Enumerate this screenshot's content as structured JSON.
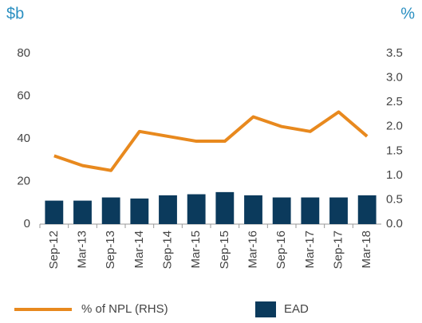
{
  "chart_data": {
    "type": "bar_line",
    "y_unit": "$b",
    "y2_unit": "%",
    "categories": [
      "Sep-12",
      "Mar-13",
      "Sep-13",
      "Mar-14",
      "Sep-14",
      "Mar-15",
      "Sep-15",
      "Mar-16",
      "Sep-16",
      "Mar-17",
      "Sep-17",
      "Mar-18"
    ],
    "series": [
      {
        "name": "% of NPL (RHS)",
        "color": "#e8891e",
        "axis": "y2",
        "type": "line",
        "values": [
          1.4,
          1.2,
          1.1,
          1.9,
          1.8,
          1.7,
          1.7,
          2.2,
          2.0,
          1.9,
          2.3,
          1.8
        ]
      },
      {
        "name": "EAD",
        "color": "#0b3a5c",
        "type": "bar",
        "values": [
          11,
          11,
          12.5,
          12,
          13.5,
          14,
          15,
          13.5,
          12.5,
          12.5,
          12.5,
          13.5
        ]
      }
    ],
    "ylim": [
      0,
      80
    ],
    "yticks": [
      0,
      20,
      40,
      60,
      80
    ],
    "y2lim": [
      0,
      3.5
    ],
    "y2ticks": [
      {
        "value": 0,
        "label": "0.0"
      },
      0.5,
      {
        "value": 1,
        "label": "1.0"
      },
      1.5,
      {
        "value": 2,
        "label": "2.0"
      },
      2.5,
      {
        "value": 3,
        "label": "3.0"
      },
      3.5
    ],
    "grid": false
  }
}
